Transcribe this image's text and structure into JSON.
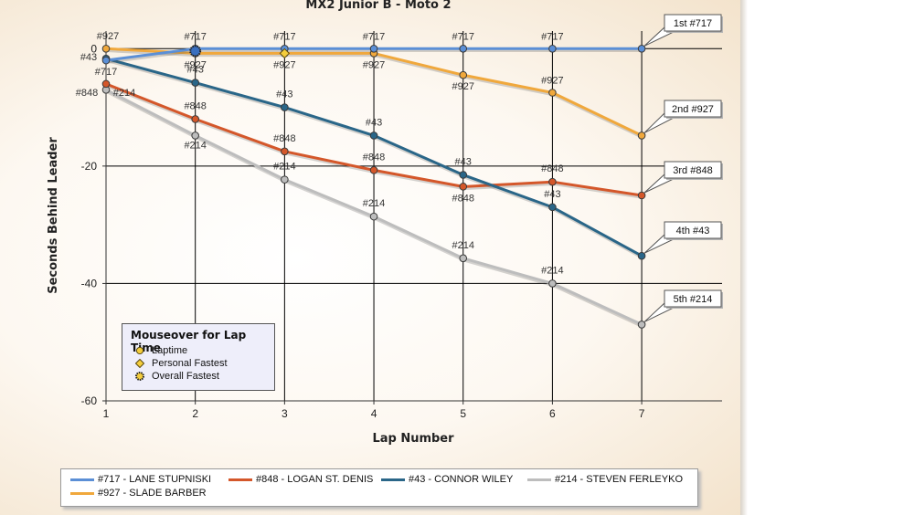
{
  "chart_data": {
    "type": "line",
    "title": "MX2 Junior B - Moto 2",
    "xlabel": "Lap Number",
    "ylabel": "Seconds Behind Leader",
    "x": [
      1,
      2,
      3,
      4,
      5,
      6,
      7
    ],
    "xlim": [
      1,
      7.9
    ],
    "ylim": [
      -60,
      3
    ],
    "yticks": [
      0,
      -20,
      -40,
      -60
    ],
    "xticks": [
      1,
      2,
      3,
      4,
      5,
      6,
      7
    ],
    "grid": true,
    "legend_position": "bottom",
    "series": [
      {
        "name": "#717 - LANE STUPNISKI",
        "tag": "#717",
        "color": "#5b8fd6",
        "values": [
          -2,
          0,
          0,
          0,
          0,
          0,
          0
        ],
        "final_label": "1st  #717"
      },
      {
        "name": "#848 - LOGAN ST. DENIS",
        "tag": "#848",
        "color": "#d4572a",
        "values": [
          -6,
          -12,
          -17.5,
          -20.7,
          -23.5,
          -22.7,
          -25
        ],
        "final_label": "3rd  #848"
      },
      {
        "name": "#43 - CONNOR WILEY",
        "tag": "#43",
        "color": "#2a6688",
        "values": [
          -1.7,
          -5.8,
          -10,
          -14.8,
          -21.5,
          -27,
          -35.3
        ],
        "final_label": "4th  #43"
      },
      {
        "name": "#214 - STEVEN FERLEYKO",
        "tag": "#214",
        "color": "#bdbdbd",
        "values": [
          -7,
          -14.8,
          -22.3,
          -28.6,
          -35.7,
          -40,
          -47
        ],
        "final_label": "5th  #214"
      },
      {
        "name": "#927 - SLADE BARBER",
        "tag": "#927",
        "color": "#f0a83c",
        "values": [
          0,
          -0.8,
          -0.8,
          -0.8,
          -4.5,
          -7.5,
          -14.8
        ],
        "final_label": "2nd  #927"
      }
    ],
    "mouseover_legend": {
      "title": "Mouseover for Lap Time",
      "items": [
        "Laptime",
        "Personal Fastest",
        "Overall Fastest"
      ]
    }
  }
}
